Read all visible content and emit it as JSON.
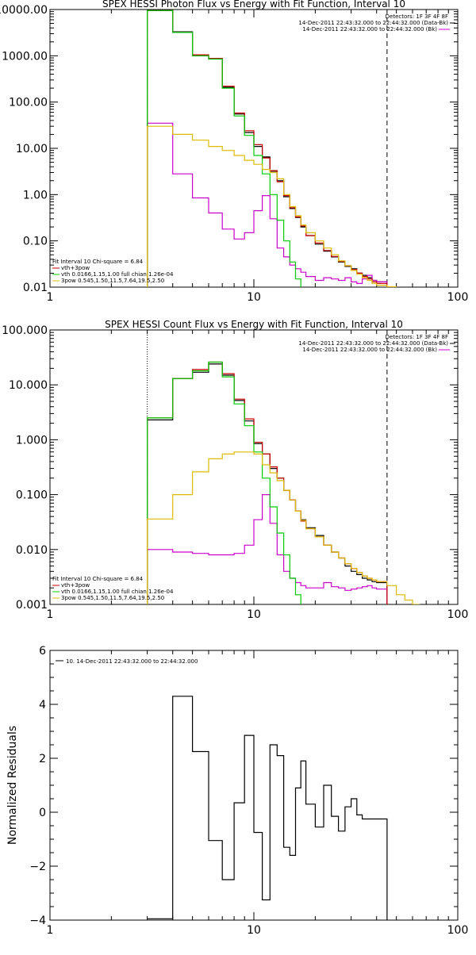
{
  "chart_data": [
    {
      "type": "line",
      "title": "SPEX HESSI Photon Flux vs Energy with Fit Function, Interval 10",
      "xscale": "log",
      "yscale": "log",
      "xlim": [
        1,
        100
      ],
      "ylim": [
        0.01,
        10000
      ],
      "x_tick_labels": [
        "1",
        "10",
        "100"
      ],
      "y_tick_labels": [
        "0.01",
        "0.10",
        "1.00",
        "10.00",
        "100.00",
        "1000.00",
        "10000.00"
      ],
      "legend_top_right": [
        "Detectors: 1F 3F 4F 8F",
        "14-Dec-2011 22:43:32.000 to 22:44:32.000 (Data-Bk)",
        "14-Dec-2011 22:43:32.000 to 22:44:32.000 (Bk)"
      ],
      "legend_bottom_left": [
        "Fit Interval 10   Chi-square = 6.84",
        "vth+3pow",
        "vth 0.0166,1.15,1.00  full chian 1.26e-04",
        "3pow 0.545,1.50,11.5,7.64,19.5,2.50"
      ],
      "vlines": [
        3,
        45
      ],
      "series": [
        {
          "name": "Data-Bk",
          "color": "#000000",
          "x": [
            3,
            4,
            5,
            6,
            7,
            8,
            9,
            10,
            11,
            12,
            13,
            14,
            15,
            16,
            17,
            18,
            20,
            22,
            24,
            26,
            28,
            30,
            32,
            34,
            36,
            38,
            40,
            45
          ],
          "values": [
            9500,
            3300,
            1000,
            870,
            210,
            55,
            22,
            11,
            6.5,
            3.2,
            2.0,
            0.9,
            0.5,
            0.32,
            0.2,
            0.13,
            0.085,
            0.06,
            0.045,
            0.035,
            0.028,
            0.025,
            0.02,
            0.018,
            0.016,
            0.014,
            0.013,
            0.013
          ]
        },
        {
          "name": "Bk",
          "color": "#cc00cc",
          "x": [
            3,
            4,
            5,
            6,
            7,
            8,
            9,
            10,
            11,
            12,
            13,
            14,
            15,
            16,
            17,
            18,
            20,
            22,
            24,
            26,
            28,
            30,
            32,
            34,
            36,
            38,
            40,
            45
          ],
          "values": [
            35,
            2.8,
            0.85,
            0.4,
            0.18,
            0.11,
            0.15,
            0.45,
            0.95,
            0.3,
            0.07,
            0.045,
            0.03,
            0.025,
            0.021,
            0.017,
            0.014,
            0.016,
            0.015,
            0.014,
            0.016,
            0.013,
            0.012,
            0.015,
            0.018,
            0.014,
            0.013,
            0.012
          ]
        },
        {
          "name": "vth+3pow",
          "color": "#cc0000",
          "x": [
            3,
            4,
            5,
            6,
            7,
            8,
            9,
            10,
            11,
            12,
            13,
            14,
            15,
            16,
            17,
            18,
            20,
            22,
            24,
            26,
            28,
            30,
            32,
            34,
            36,
            38,
            40,
            45
          ],
          "values": [
            9500,
            3200,
            1050,
            880,
            220,
            58,
            24,
            12,
            6.2,
            3.3,
            1.9,
            0.95,
            0.52,
            0.33,
            0.21,
            0.13,
            0.09,
            0.062,
            0.046,
            0.036,
            0.029,
            0.024,
            0.02,
            0.017,
            0.015,
            0.013,
            0.012,
            0.011
          ]
        },
        {
          "name": "vth",
          "color": "#00cc00",
          "x": [
            3,
            4,
            5,
            6,
            7,
            8,
            9,
            10,
            11,
            12,
            13,
            14,
            15,
            16,
            17
          ],
          "values": [
            9500,
            3200,
            1000,
            850,
            200,
            50,
            19,
            7,
            2.8,
            1.0,
            0.28,
            0.1,
            0.035,
            0.015,
            0.01
          ]
        },
        {
          "name": "3pow",
          "color": "#ddbb00",
          "x": [
            3,
            4,
            5,
            6,
            7,
            8,
            9,
            10,
            11,
            12,
            13,
            14,
            15,
            16,
            17,
            18,
            20,
            22,
            24,
            26,
            28,
            30,
            32,
            34,
            36,
            38,
            40,
            45,
            50
          ],
          "values": [
            30,
            20,
            15,
            11,
            9,
            7,
            5.5,
            4.5,
            3.5,
            3.0,
            2.2,
            1.0,
            0.55,
            0.35,
            0.22,
            0.15,
            0.1,
            0.07,
            0.05,
            0.037,
            0.029,
            0.023,
            0.019,
            0.016,
            0.014,
            0.012,
            0.011,
            0.0102,
            0.01
          ]
        }
      ]
    },
    {
      "type": "line",
      "title": "SPEX HESSI Count Flux vs Energy with Fit Function, Interval 10",
      "xscale": "log",
      "yscale": "log",
      "xlim": [
        1,
        100
      ],
      "ylim": [
        0.001,
        100
      ],
      "x_tick_labels": [
        "1",
        "10",
        "100"
      ],
      "y_tick_labels": [
        "0.001",
        "0.010",
        "0.100",
        "1.000",
        "10.000",
        "100.000"
      ],
      "legend_top_right": [
        "Detectors: 1F 3F 4F 8F",
        "14-Dec-2011 22:43:32.000 to 22:44:32.000 (Data-Bk)",
        "14-Dec-2011 22:43:32.000 to 22:44:32.000 (Bk)"
      ],
      "legend_bottom_left": [
        "Fit Interval 10   Chi-square = 6.84",
        "vth+3pow",
        "vth 0.0166,1.15,1.00  full chian 1.26e-04",
        "3pow 0.545,1.50,11.5,7.64,19.5,2.50"
      ],
      "vlines": [
        3,
        45
      ],
      "series": [
        {
          "name": "Data-Bk",
          "color": "#000000",
          "x": [
            3,
            4,
            5,
            6,
            7,
            8,
            9,
            10,
            11,
            12,
            13,
            14,
            15,
            16,
            17,
            18,
            20,
            22,
            24,
            26,
            28,
            30,
            32,
            34,
            36,
            38,
            40,
            45
          ],
          "values": [
            2.3,
            13,
            17,
            24,
            15,
            5.2,
            2.2,
            0.85,
            0.55,
            0.3,
            0.2,
            0.12,
            0.08,
            0.05,
            0.035,
            0.025,
            0.018,
            0.012,
            0.009,
            0.007,
            0.005,
            0.004,
            0.0035,
            0.003,
            0.0028,
            0.0026,
            0.0025,
            0.0025
          ]
        },
        {
          "name": "Bk",
          "color": "#cc00cc",
          "x": [
            3,
            4,
            5,
            6,
            7,
            8,
            9,
            10,
            11,
            12,
            13,
            14,
            15,
            16,
            17,
            18,
            20,
            22,
            24,
            26,
            28,
            30,
            32,
            34,
            36,
            38,
            40,
            45
          ],
          "values": [
            0.01,
            0.009,
            0.0085,
            0.008,
            0.008,
            0.0085,
            0.012,
            0.035,
            0.1,
            0.03,
            0.008,
            0.004,
            0.003,
            0.0025,
            0.0022,
            0.002,
            0.002,
            0.0025,
            0.0021,
            0.002,
            0.0018,
            0.0019,
            0.002,
            0.0021,
            0.0022,
            0.002,
            0.0019,
            0.0017
          ]
        },
        {
          "name": "vth+3pow",
          "color": "#cc0000",
          "x": [
            3,
            4,
            5,
            6,
            7,
            8,
            9,
            10,
            11,
            12,
            13,
            14,
            15,
            16,
            17,
            18,
            20,
            22,
            24,
            26,
            28,
            30,
            32,
            34,
            36,
            38,
            40,
            45
          ],
          "values": [
            2.5,
            13,
            19,
            26,
            16,
            5.5,
            2.4,
            0.9,
            0.55,
            0.32,
            0.2,
            0.12,
            0.08,
            0.05,
            0.033,
            0.024,
            0.017,
            0.012,
            0.009,
            0.007,
            0.0055,
            0.0045,
            0.0038,
            0.0033,
            0.003,
            0.0028,
            0.0026,
            0.0024
          ]
        },
        {
          "name": "vth",
          "color": "#00cc00",
          "x": [
            3,
            4,
            5,
            6,
            7,
            8,
            9,
            10,
            11,
            12,
            13,
            14,
            15,
            16,
            17
          ],
          "values": [
            2.5,
            13,
            18,
            26,
            14,
            4.5,
            1.8,
            0.6,
            0.2,
            0.06,
            0.02,
            0.008,
            0.003,
            0.0015,
            0.001
          ]
        },
        {
          "name": "3pow",
          "color": "#ddbb00",
          "x": [
            3,
            4,
            5,
            6,
            7,
            8,
            9,
            10,
            11,
            12,
            13,
            14,
            15,
            16,
            17,
            18,
            20,
            22,
            24,
            26,
            28,
            30,
            32,
            34,
            36,
            38,
            40,
            45,
            50,
            55,
            60,
            65
          ],
          "values": [
            0.036,
            0.1,
            0.26,
            0.45,
            0.55,
            0.6,
            0.6,
            0.55,
            0.35,
            0.25,
            0.18,
            0.12,
            0.08,
            0.05,
            0.034,
            0.024,
            0.017,
            0.012,
            0.009,
            0.007,
            0.0055,
            0.0045,
            0.0038,
            0.0033,
            0.003,
            0.0028,
            0.0026,
            0.0022,
            0.0015,
            0.0012,
            0.001,
            0.001
          ]
        }
      ]
    },
    {
      "type": "line",
      "xscale": "log",
      "yscale": "linear",
      "xlim": [
        1,
        100
      ],
      "ylim": [
        -4,
        6
      ],
      "ylabel": "Normalized Residuals",
      "x_tick_labels": [
        "1",
        "10",
        "100"
      ],
      "y_tick_values": [
        -4,
        -2,
        0,
        2,
        4,
        6
      ],
      "y_tick_labels": [
        "−4",
        "−2",
        "0",
        "2",
        "4",
        "6"
      ],
      "legend": "10. 14-Dec-2011 22:43:32.000 to 22:44:32.000",
      "series": [
        {
          "name": "10. 14-Dec-2011 22:43:32.000 to 22:44:32.000",
          "color": "#000000",
          "x": [
            3,
            4,
            5,
            6,
            7,
            8,
            9,
            10,
            11,
            12,
            13,
            14,
            15,
            16,
            17,
            18,
            20,
            22,
            24,
            26,
            28,
            30,
            32,
            34,
            36,
            38,
            40,
            45
          ],
          "values": [
            -3.95,
            4.3,
            2.25,
            -1.05,
            -2.5,
            0.35,
            2.85,
            -0.75,
            -3.25,
            2.5,
            2.1,
            -1.3,
            -1.6,
            0.9,
            1.9,
            0.3,
            -0.55,
            1.0,
            -0.15,
            -0.7,
            0.2,
            0.5,
            -0.1,
            -0.25,
            -0.25,
            -0.25,
            -0.25,
            -3.9
          ]
        }
      ]
    }
  ]
}
